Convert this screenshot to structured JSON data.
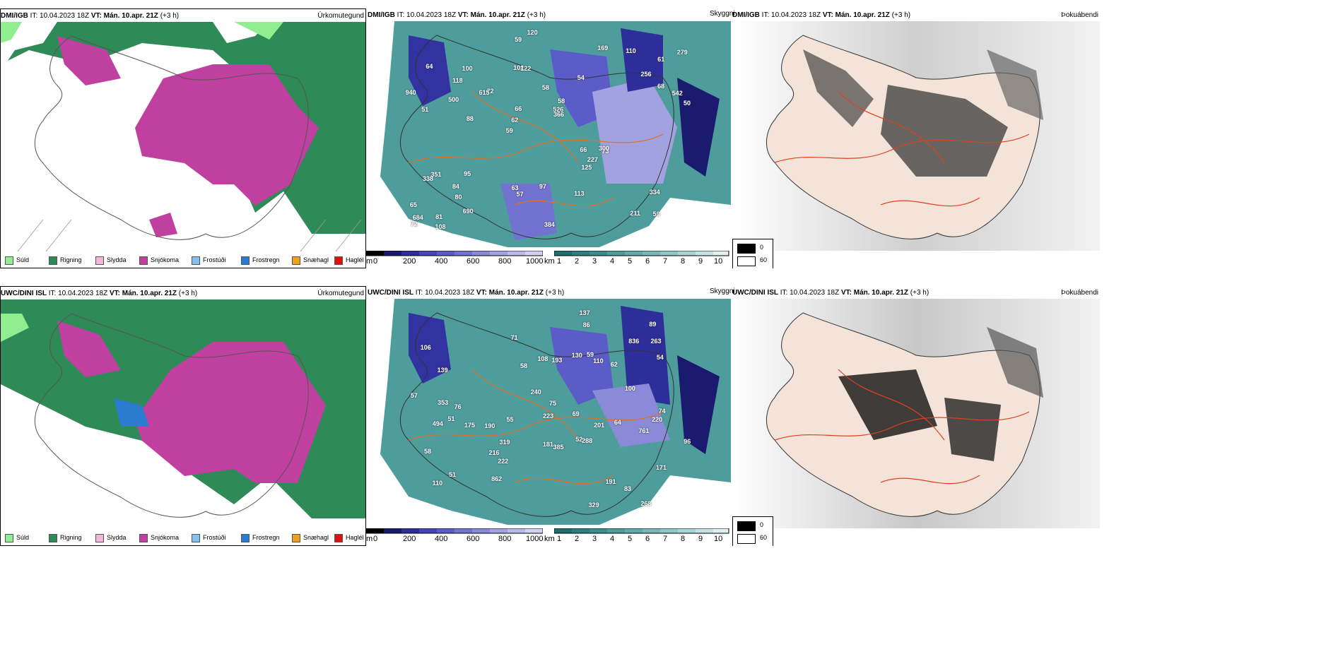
{
  "rows": [
    {
      "precip": {
        "model": "DMI/IGB",
        "run": "IT: 10.04.2023 18Z",
        "valid_label": "VT: Mán. 10.apr. 21Z",
        "offset": "(+3 h)",
        "title": "Úrkomutegund"
      },
      "cloud": {
        "model": "DMI/IGB",
        "run": "IT: 10.04.2023 18Z",
        "valid_label": "VT: Mán. 10.apr. 21Z",
        "offset": "(+3 h)",
        "title": "Skyggni"
      },
      "fog": {
        "model": "DMI/IGB",
        "run": "IT: 10.04.2023 18Z",
        "valid_label": "VT: Mán. 10.apr. 21Z",
        "offset": "(+3 h)",
        "title": "Þokuábendi"
      },
      "labels": [
        "59",
        "51",
        "61",
        "59",
        "54",
        "81",
        "102",
        "58",
        "351",
        "72",
        "65",
        "80",
        "122",
        "58",
        "73",
        "64",
        "59",
        "50",
        "66",
        "68",
        "62",
        "63",
        "66",
        "100",
        "169",
        "95",
        "211",
        "334",
        "300",
        "384",
        "615",
        "500",
        "125",
        "690",
        "542",
        "526",
        "684",
        "57",
        "366",
        "338",
        "256",
        "279",
        "227",
        "113",
        "84",
        "108",
        "72",
        "97",
        "110",
        "120",
        "88",
        "940",
        "118"
      ]
    },
    {
      "precip": {
        "model": "UWC/DINI ISL",
        "run": "IT: 10.04.2023 18Z",
        "valid_label": "VT: Mán. 10.apr. 21Z",
        "offset": "(+3 h)",
        "title": "Úrkomutegund"
      },
      "cloud": {
        "model": "UWC/DINI ISL",
        "run": "IT: 10.04.2023 18Z",
        "valid_label": "VT: Mán. 10.apr. 21Z",
        "offset": "(+3 h)",
        "title": "Skyggni"
      },
      "fog": {
        "model": "UWC/DINI ISL",
        "run": "IT: 10.04.2023 18Z",
        "valid_label": "VT: Mán. 10.apr. 21Z",
        "offset": "(+3 h)",
        "title": "Þokuábendi"
      },
      "labels": [
        "268",
        "51",
        "52",
        "106",
        "171",
        "139",
        "51",
        "190",
        "62",
        "108",
        "110",
        "83",
        "222",
        "71",
        "69",
        "58",
        "64",
        "75",
        "57",
        "110",
        "89",
        "193",
        "100",
        "96",
        "74",
        "353",
        "175",
        "223",
        "240",
        "263",
        "288",
        "494",
        "216",
        "59",
        "58",
        "761",
        "220",
        "191",
        "836",
        "329",
        "319",
        "385",
        "862",
        "137",
        "55",
        "76",
        "54",
        "86",
        "130",
        "181",
        "201"
      ]
    }
  ],
  "precip_legend": [
    {
      "label": "Súld",
      "color": "#90ee90"
    },
    {
      "label": "Rigning",
      "color": "#2e8b57"
    },
    {
      "label": "Slydda",
      "color": "#f4b6d8"
    },
    {
      "label": "Snjókoma",
      "color": "#c040a0"
    },
    {
      "label": "Frostúði",
      "color": "#87c0ee"
    },
    {
      "label": "Frostregn",
      "color": "#2b7bd0"
    },
    {
      "label": "Snæhagl",
      "color": "#f0a020"
    },
    {
      "label": "Haglél",
      "color": "#e01010"
    }
  ],
  "height_scale": {
    "unit": "m",
    "ticks": [
      "0",
      "200",
      "400",
      "600",
      "800",
      "1000"
    ],
    "colors": [
      "#000000",
      "#1a1a6e",
      "#2e2e9a",
      "#4646b8",
      "#5c5cc8",
      "#7272d0",
      "#8a8ad8",
      "#a2a2e0",
      "#babae8",
      "#d2d2f0"
    ]
  },
  "vis_scale": {
    "unit": "km",
    "ticks": [
      "1",
      "2",
      "3",
      "4",
      "5",
      "6",
      "7",
      "8",
      "9",
      "10"
    ],
    "colors": [
      "#1f6f6f",
      "#2e8080",
      "#3c8e8e",
      "#4f9c9c",
      "#64aaaa",
      "#7ab8b8",
      "#92c6c6",
      "#aad4d4",
      "#c4e2e2",
      "#e0f0f0"
    ]
  },
  "fog_legend": [
    {
      "label": "0",
      "color": "#000000"
    },
    {
      "label": "60",
      "color": "#ffffff"
    }
  ],
  "colors": {
    "sea_green": "#2e8b57",
    "snow": "#c040a0",
    "teal": "#4f9c9c",
    "road": "#e07020"
  }
}
